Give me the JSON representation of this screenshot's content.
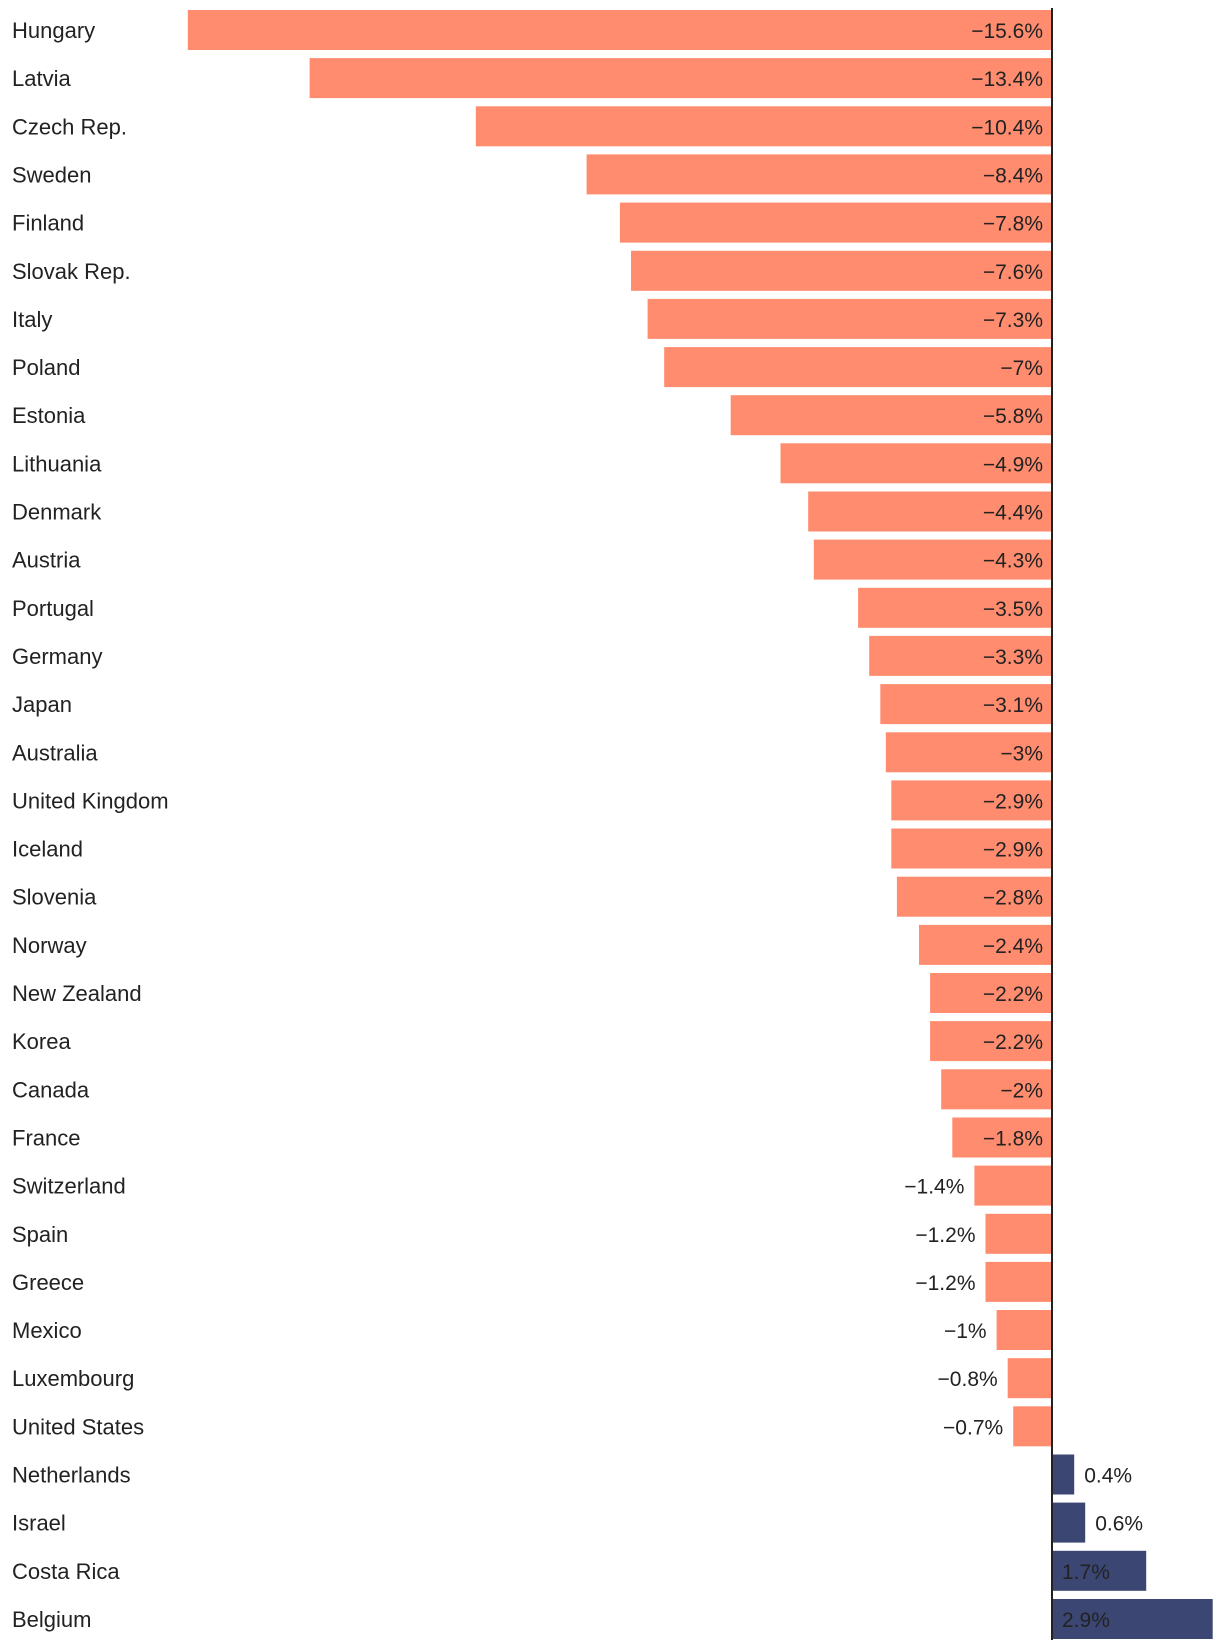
{
  "chart_data": {
    "type": "bar",
    "orientation": "horizontal",
    "title": "",
    "xlabel": "",
    "ylabel": "",
    "xlim": [
      -15.6,
      2.9
    ],
    "grid": false,
    "colors": {
      "negative": "#FF8C6E",
      "positive": "#3B4673",
      "axis": "#222222"
    },
    "categories": [
      "Hungary",
      "Latvia",
      "Czech Rep.",
      "Sweden",
      "Finland",
      "Slovak Rep.",
      "Italy",
      "Poland",
      "Estonia",
      "Lithuania",
      "Denmark",
      "Austria",
      "Portugal",
      "Germany",
      "Japan",
      "Australia",
      "United Kingdom",
      "Iceland",
      "Slovenia",
      "Norway",
      "New Zealand",
      "Korea",
      "Canada",
      "France",
      "Switzerland",
      "Spain",
      "Greece",
      "Mexico",
      "Luxembourg",
      "United States",
      "Netherlands",
      "Israel",
      "Costa Rica",
      "Belgium"
    ],
    "values": [
      -15.6,
      -13.4,
      -10.4,
      -8.4,
      -7.8,
      -7.6,
      -7.3,
      -7,
      -5.8,
      -4.9,
      -4.4,
      -4.3,
      -3.5,
      -3.3,
      -3.1,
      -3,
      -2.9,
      -2.9,
      -2.8,
      -2.4,
      -2.2,
      -2.2,
      -2,
      -1.8,
      -1.4,
      -1.2,
      -1.2,
      -1,
      -0.8,
      -0.7,
      0.4,
      0.6,
      1.7,
      2.9
    ],
    "value_labels": [
      "−15.6%",
      "−13.4%",
      "−10.4%",
      "−8.4%",
      "−7.8%",
      "−7.6%",
      "−7.3%",
      "−7%",
      "−5.8%",
      "−4.9%",
      "−4.4%",
      "−4.3%",
      "−3.5%",
      "−3.3%",
      "−3.1%",
      "−3%",
      "−2.9%",
      "−2.9%",
      "−2.8%",
      "−2.4%",
      "−2.2%",
      "−2.2%",
      "−2%",
      "−1.8%",
      "−1.4%",
      "−1.2%",
      "−1.2%",
      "−1%",
      "−0.8%",
      "−0.7%",
      "0.4%",
      "0.6%",
      "1.7%",
      "2.9%"
    ]
  }
}
